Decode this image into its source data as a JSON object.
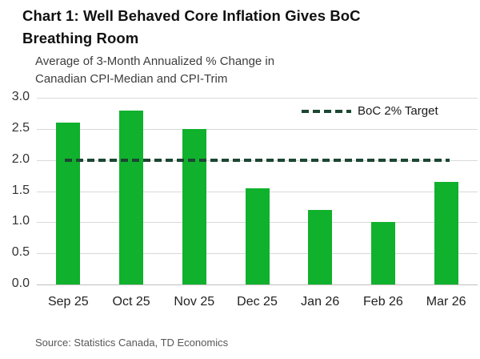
{
  "page": {
    "title_line1": "Chart 1: Well Behaved Core Inflation Gives BoC",
    "title_line2": "Breathing Room",
    "subtitle_line1": "Average of 3-Month Annualized % Change in",
    "subtitle_line2": "Canadian CPI-Median and CPI-Trim",
    "source": "Source: Statistics Canada, TD Economics"
  },
  "legend": {
    "target_label": "BoC 2% Target"
  },
  "colors": {
    "bar": "#10b12c",
    "target_line": "#1c4733",
    "grid": "#d9d9d9",
    "axis": "#bfbfbf"
  },
  "chart_data": {
    "type": "bar",
    "title": "Chart 1: Well Behaved Core Inflation Gives BoC Breathing Room",
    "subtitle": "Average of 3-Month Annualized % Change in Canadian CPI-Median and CPI-Trim",
    "categories": [
      "Sep 25",
      "Oct 25",
      "Nov 25",
      "Dec 25",
      "Jan 26",
      "Feb 26",
      "Mar 26"
    ],
    "values": [
      2.6,
      2.8,
      2.5,
      1.55,
      1.2,
      1.0,
      1.65
    ],
    "target_line": {
      "label": "BoC 2% Target",
      "value": 2.0,
      "style": "dashed"
    },
    "xlabel": "",
    "ylabel": "",
    "ylim": [
      0,
      3.0
    ],
    "yticks": [
      "0.0",
      "0.5",
      "1.0",
      "1.5",
      "2.0",
      "2.5",
      "3.0"
    ],
    "grid": true,
    "legend_position": "top-right",
    "source": "Source: Statistics Canada, TD Economics"
  }
}
